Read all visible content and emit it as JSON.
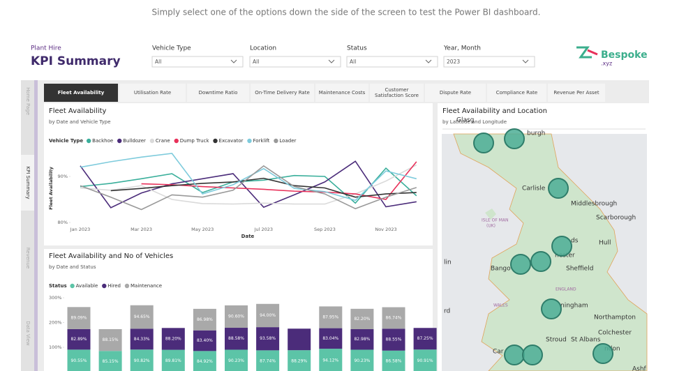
{
  "caption": "Simply select one of the options down the side of the screen to test the Power BI dashboard.",
  "header": {
    "subtitle": "Plant Hire",
    "title": "KPI Summary",
    "filters": [
      {
        "label": "Vehicle Type",
        "value": "All"
      },
      {
        "label": "Location",
        "value": "All"
      },
      {
        "label": "Status",
        "value": "All"
      },
      {
        "label": "Year, Month",
        "value": "2023"
      }
    ],
    "logo": "Bespoke",
    "logo_suffix": ".xyz"
  },
  "nav": [
    "Home Page",
    "KPI Summary",
    "Revenue",
    "Data View"
  ],
  "tabs": [
    "Fleet Availability",
    "Utilisation Rate",
    "Downtime Ratio",
    "On-Time Delivery Rate",
    "Maintenance Costs",
    "Customer Satisfaction Score",
    "Dispute Rate",
    "Compliance Rate",
    "Revenue Per Asset"
  ],
  "chart_data": [
    {
      "type": "line",
      "title": "Fleet Availability",
      "subtitle": "by Date and Vehicle Type",
      "legend_title": "Vehicle Type",
      "x_label": "Date",
      "y_label": "Fleet Availability",
      "categories": [
        "Jan 2023",
        null,
        "Mar 2023",
        null,
        "May 2023",
        null,
        "Jul 2023",
        null,
        "Sep 2023",
        null,
        "Nov 2023",
        null
      ],
      "ylim": [
        79,
        95.5
      ],
      "yticks": [
        {
          "value": 80,
          "label": "80%"
        },
        {
          "value": 90,
          "label": "90%"
        }
      ],
      "grid": false,
      "series": [
        {
          "name": "Backhoe",
          "color": "#3aaf9b",
          "values": [
            87.8,
            88.5,
            89.5,
            90.6,
            86.5,
            88.8,
            89.2,
            90.2,
            90.0,
            84.2,
            91.8,
            85.8
          ]
        },
        {
          "name": "Bulldozer",
          "color": "#4b2c7a",
          "values": [
            92.3,
            83.2,
            86.4,
            88.4,
            89.5,
            90.6,
            83.3,
            86.0,
            88.8,
            93.3,
            83.4,
            84.5
          ]
        },
        {
          "name": "Crane",
          "color": "#dadada",
          "values": [
            87.5,
            87.0,
            88.0,
            85.0,
            84.1,
            84.0,
            84.2,
            84.0,
            84.0,
            86.2,
            89.0,
            92.5
          ]
        },
        {
          "name": "Dump Truck",
          "color": "#e8315a",
          "values": [
            null,
            null,
            88.4,
            88.2,
            87.8,
            87.5,
            87.2,
            86.8,
            86.6,
            86.2,
            85.0,
            93.2
          ]
        },
        {
          "name": "Excavator",
          "color": "#333333",
          "values": [
            null,
            86.9,
            87.4,
            88.0,
            88.5,
            88.8,
            89.6,
            88.0,
            87.5,
            85.5,
            86.2,
            86.5
          ]
        },
        {
          "name": "Forklift",
          "color": "#7ecbdc",
          "values": [
            92.0,
            93.2,
            94.2,
            95.0,
            86.2,
            88.2,
            91.7,
            87.4,
            86.7,
            84.8,
            91.2,
            89.5
          ]
        },
        {
          "name": "Loader",
          "color": "#999999",
          "values": [
            88.0,
            85.5,
            82.8,
            86.0,
            85.5,
            87.0,
            92.3,
            87.8,
            86.2,
            83.0,
            85.5,
            87.6
          ]
        }
      ]
    },
    {
      "type": "stacked_bar",
      "title": "Fleet Availability and No of Vehicles",
      "subtitle": "by Date and Status",
      "legend_title": "Status",
      "ylim": [
        0,
        320
      ],
      "yticks": [
        {
          "value": 100,
          "label": "100%"
        },
        {
          "value": 200,
          "label": "200%"
        },
        {
          "value": 300,
          "label": "300%"
        }
      ],
      "series": [
        {
          "name": "Available",
          "color": "#5cc4a7",
          "values": [
            90.55,
            85.15,
            90.82,
            89.81,
            84.92,
            90.23,
            87.74,
            88.29,
            94.12,
            90.23,
            86.58,
            90.91
          ],
          "value_labels": [
            "90.55%",
            "85.15%",
            "90.82%",
            "89.81%",
            "84.92%",
            "90.23%",
            "87.74%",
            "88.29%",
            "94.12%",
            "90.23%",
            "86.58%",
            "90.91%"
          ]
        },
        {
          "name": "Hired",
          "color": "#4b2c7a",
          "values": [
            82.89,
            null,
            84.33,
            88.2,
            83.4,
            88.58,
            93.58,
            87,
            83.04,
            82.98,
            88.55,
            87.25
          ],
          "value_labels": [
            "82.89%",
            null,
            "84.33%",
            "88.20%",
            "83.40%",
            "88.58%",
            "93.58%",
            null,
            "83.04%",
            "82.98%",
            "88.55%",
            "87.25%"
          ]
        },
        {
          "name": "Maintenance",
          "color": "#a9a9a9",
          "values": [
            89.09,
            88.15,
            94.65,
            null,
            86.98,
            90.6,
            94.0,
            null,
            87.95,
            82.2,
            86.74,
            null
          ],
          "value_labels": [
            "89.09%",
            "88.15%",
            "94.65%",
            null,
            "86.98%",
            "90.60%",
            "94.00%",
            null,
            "87.95%",
            "82.20%",
            "86.74%",
            null
          ]
        }
      ]
    }
  ],
  "map": {
    "title": "Fleet Availability and Location",
    "subtitle": "by Latitude and Longitude",
    "labels": [
      "Glasg",
      "burgh",
      "Carlisle",
      "Middlesbrough",
      "Scarborough",
      "ISLE OF MAN",
      "(UK)",
      "ds",
      "Hull",
      "hester",
      "Sheffield",
      "lin",
      "Bango",
      "ENGLAND",
      "ningham",
      "WALES",
      "rd",
      "Northampton",
      "Colchester",
      "Stroud",
      "St Albans",
      "ndon",
      "Car",
      "Ashf"
    ]
  }
}
